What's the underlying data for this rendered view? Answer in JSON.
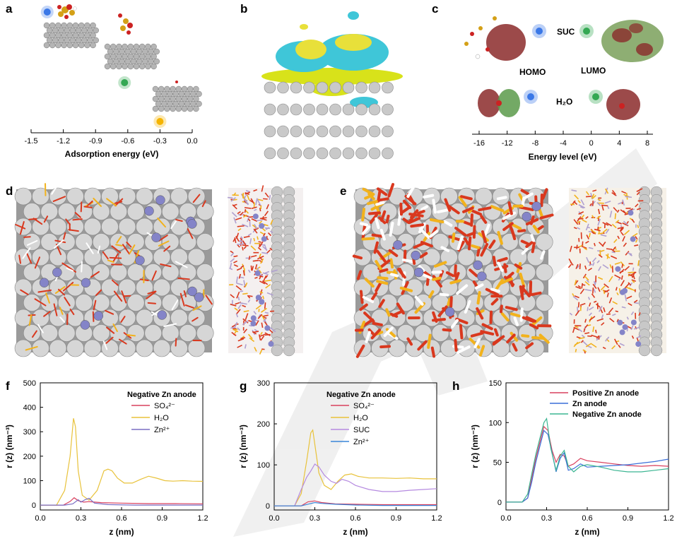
{
  "panels": {
    "a": {
      "label": "a",
      "xlabel": "Adsorption energy (eV)",
      "ticks": [
        "-1.5",
        "-1.2",
        "-0.9",
        "-0.6",
        "-0.3",
        "0.0"
      ],
      "tick_values": [
        -1.5,
        -1.2,
        -0.9,
        -0.6,
        -0.3,
        0.0
      ],
      "points": [
        {
          "x": -1.35,
          "color": "#3b78e7"
        },
        {
          "x": -0.63,
          "color": "#34a853"
        },
        {
          "x": -0.3,
          "color": "#f5b400"
        }
      ]
    },
    "b": {
      "label": "b"
    },
    "c": {
      "label": "c",
      "xlabel": "Energy level (eV)",
      "ticks": [
        "-16",
        "-12",
        "-8",
        "-4",
        "0",
        "4",
        "8"
      ],
      "tick_values": [
        -16,
        -12,
        -8,
        -4,
        0,
        4,
        8
      ],
      "labels": {
        "suc": "SUC",
        "homo": "HOMO",
        "lumo": "LUMO",
        "h2o": "H₂O"
      }
    },
    "d": {
      "label": "d"
    },
    "e": {
      "label": "e"
    },
    "f": {
      "label": "f",
      "legend_title": "Negative Zn anode"
    },
    "g": {
      "label": "g",
      "legend_title": "Negative Zn anode"
    },
    "h": {
      "label": "h"
    }
  },
  "chart_data": [
    {
      "id": "f",
      "type": "line",
      "xlabel": "z (nm)",
      "ylabel": "r (z) (nm⁻³)",
      "xlim": [
        0.0,
        1.2
      ],
      "ylim": [
        -20,
        500
      ],
      "xticks": [
        0.0,
        0.3,
        0.6,
        0.9,
        1.2
      ],
      "yticks": [
        0,
        100,
        200,
        300,
        400,
        500
      ],
      "xticklabels": [
        "0.0",
        "0.3",
        "0.6",
        "0.9",
        "1.2"
      ],
      "yticklabels": [
        "0",
        "100",
        "200",
        "300",
        "400",
        "500"
      ],
      "series": [
        {
          "name": "SO₄²⁻",
          "color": "#d9415f",
          "x": [
            0,
            0.17,
            0.22,
            0.25,
            0.28,
            0.32,
            0.36,
            0.45,
            0.6,
            0.8,
            1.0,
            1.2
          ],
          "y": [
            0,
            0,
            15,
            30,
            18,
            12,
            14,
            10,
            8,
            6,
            6,
            5
          ]
        },
        {
          "name": "H₂O",
          "color": "#e8c23a",
          "x": [
            0,
            0.12,
            0.18,
            0.22,
            0.245,
            0.26,
            0.28,
            0.31,
            0.36,
            0.42,
            0.47,
            0.5,
            0.53,
            0.57,
            0.62,
            0.68,
            0.74,
            0.8,
            0.86,
            0.92,
            0.98,
            1.05,
            1.12,
            1.2
          ],
          "y": [
            0,
            0,
            60,
            200,
            355,
            320,
            140,
            40,
            20,
            60,
            140,
            147,
            140,
            110,
            90,
            90,
            105,
            118,
            110,
            100,
            98,
            100,
            98,
            97
          ]
        },
        {
          "name": "Zn²⁺",
          "color": "#7a6fc4",
          "x": [
            0,
            0.18,
            0.24,
            0.28,
            0.3,
            0.33,
            0.36,
            0.4,
            0.5,
            0.7,
            0.9,
            1.2
          ],
          "y": [
            0,
            0,
            5,
            22,
            12,
            22,
            28,
            8,
            2,
            0,
            0,
            0
          ]
        }
      ]
    },
    {
      "id": "g",
      "type": "line",
      "xlabel": "z (nm)",
      "ylabel": "r (z) (nm⁻³)",
      "xlim": [
        0.0,
        1.2
      ],
      "ylim": [
        -10,
        300
      ],
      "xticks": [
        0.0,
        0.3,
        0.6,
        0.9,
        1.2
      ],
      "yticks": [
        0,
        100,
        200,
        300
      ],
      "xticklabels": [
        "0.0",
        "0.3",
        "0.6",
        "0.9",
        "1.2"
      ],
      "yticklabels": [
        "0",
        "100",
        "200",
        "300"
      ],
      "series": [
        {
          "name": "SO₄²⁻",
          "color": "#d9415f",
          "x": [
            0,
            0.2,
            0.25,
            0.3,
            0.35,
            0.45,
            0.6,
            0.8,
            1.0,
            1.2
          ],
          "y": [
            0,
            0,
            10,
            12,
            8,
            5,
            4,
            3,
            3,
            3
          ]
        },
        {
          "name": "H₂O",
          "color": "#e8c23a",
          "x": [
            0,
            0.15,
            0.2,
            0.24,
            0.27,
            0.285,
            0.3,
            0.33,
            0.37,
            0.42,
            0.47,
            0.52,
            0.57,
            0.62,
            0.7,
            0.8,
            0.9,
            1.0,
            1.1,
            1.2
          ],
          "y": [
            0,
            0,
            30,
            110,
            178,
            185,
            150,
            80,
            50,
            40,
            60,
            75,
            78,
            72,
            68,
            68,
            67,
            68,
            66,
            66
          ]
        },
        {
          "name": "SUC",
          "color": "#b58ae0",
          "x": [
            0,
            0.15,
            0.2,
            0.24,
            0.27,
            0.3,
            0.33,
            0.37,
            0.42,
            0.46,
            0.5,
            0.55,
            0.6,
            0.7,
            0.8,
            0.9,
            1.0,
            1.1,
            1.2
          ],
          "y": [
            0,
            0,
            40,
            70,
            85,
            102,
            95,
            75,
            60,
            55,
            65,
            60,
            50,
            40,
            35,
            35,
            38,
            40,
            42
          ]
        },
        {
          "name": "Zn²⁺",
          "color": "#3a86d9",
          "x": [
            0,
            0.2,
            0.26,
            0.3,
            0.35,
            0.45,
            0.6,
            0.8,
            1.0,
            1.2
          ],
          "y": [
            0,
            0,
            5,
            8,
            6,
            4,
            2,
            1,
            1,
            1
          ]
        }
      ]
    },
    {
      "id": "h",
      "type": "line",
      "xlabel": "z (nm)",
      "ylabel": "r (z) (nm⁻³)",
      "xlim": [
        0.0,
        1.2
      ],
      "ylim": [
        -10,
        150
      ],
      "xticks": [
        0.0,
        0.3,
        0.6,
        0.9,
        1.2
      ],
      "yticks": [
        0,
        50,
        100,
        150
      ],
      "xticklabels": [
        "0.0",
        "0.3",
        "0.6",
        "0.9",
        "1.2"
      ],
      "yticklabels": [
        "0",
        "50",
        "100",
        "150"
      ],
      "series": [
        {
          "name": "Positive Zn anode",
          "color": "#d9415f",
          "x": [
            0,
            0.12,
            0.16,
            0.19,
            0.22,
            0.25,
            0.28,
            0.31,
            0.34,
            0.37,
            0.4,
            0.43,
            0.46,
            0.5,
            0.55,
            0.6,
            0.7,
            0.8,
            0.9,
            1.0,
            1.1,
            1.2
          ],
          "y": [
            0,
            0,
            5,
            30,
            55,
            75,
            95,
            90,
            65,
            50,
            60,
            58,
            45,
            48,
            55,
            52,
            50,
            48,
            46,
            45,
            46,
            45
          ]
        },
        {
          "name": "Zn anode",
          "color": "#3a6fd9",
          "x": [
            0,
            0.12,
            0.16,
            0.19,
            0.22,
            0.25,
            0.28,
            0.31,
            0.34,
            0.37,
            0.4,
            0.43,
            0.46,
            0.5,
            0.55,
            0.6,
            0.7,
            0.8,
            0.9,
            1.0,
            1.1,
            1.2
          ],
          "y": [
            0,
            0,
            5,
            25,
            50,
            70,
            90,
            85,
            62,
            38,
            55,
            62,
            40,
            42,
            48,
            44,
            45,
            46,
            47,
            49,
            51,
            54
          ]
        },
        {
          "name": "Negative Zn anode",
          "color": "#3bb592",
          "x": [
            0,
            0.12,
            0.16,
            0.19,
            0.22,
            0.25,
            0.28,
            0.3,
            0.33,
            0.37,
            0.4,
            0.43,
            0.46,
            0.5,
            0.55,
            0.6,
            0.7,
            0.8,
            0.9,
            1.0,
            1.1,
            1.2
          ],
          "y": [
            0,
            0,
            10,
            35,
            60,
            80,
            100,
            105,
            68,
            40,
            58,
            65,
            45,
            38,
            45,
            47,
            44,
            40,
            38,
            38,
            40,
            42
          ]
        }
      ]
    }
  ]
}
